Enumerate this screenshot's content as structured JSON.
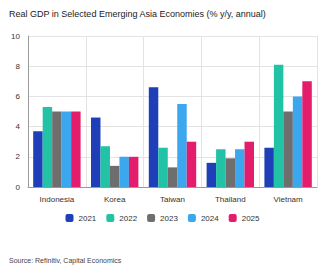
{
  "chart_data": {
    "type": "bar",
    "title": "Real GDP in Selected Emerging Asia Economies (% y/y, annual)",
    "source": "Source: Refinitiv, Capital Economics",
    "categories": [
      "Indonesia",
      "Korea",
      "Taiwan",
      "Thailand",
      "Vietnam"
    ],
    "series": [
      {
        "name": "2021",
        "color": "#1f3fb8",
        "values": [
          3.7,
          4.6,
          6.6,
          1.6,
          2.6
        ]
      },
      {
        "name": "2022",
        "color": "#22c2a6",
        "values": [
          5.3,
          2.7,
          2.6,
          2.5,
          8.1
        ]
      },
      {
        "name": "2023",
        "color": "#6e6e6e",
        "values": [
          5.0,
          1.4,
          1.3,
          1.9,
          5.0
        ]
      },
      {
        "name": "2024",
        "color": "#3ba7ef",
        "values": [
          5.0,
          2.0,
          5.5,
          2.5,
          6.0
        ]
      },
      {
        "name": "2025",
        "color": "#e31c6c",
        "values": [
          5.0,
          2.0,
          3.0,
          3.0,
          7.0
        ]
      }
    ],
    "ylim": [
      0,
      10
    ],
    "yticks": [
      0,
      2,
      4,
      6,
      8,
      10
    ],
    "grid": true,
    "legend": "bottom"
  }
}
